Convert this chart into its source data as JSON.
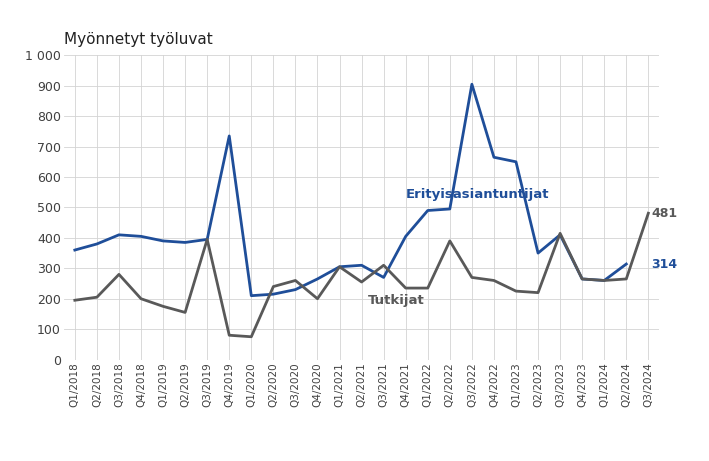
{
  "quarters": [
    "Q1/2018",
    "Q2/2018",
    "Q3/2018",
    "Q4/2018",
    "Q1/2019",
    "Q2/2019",
    "Q3/2019",
    "Q4/2019",
    "Q1/2020",
    "Q2/2020",
    "Q3/2020",
    "Q4/2020",
    "Q1/2021",
    "Q2/2021",
    "Q3/2021",
    "Q4/2021",
    "Q1/2022",
    "Q2/2022",
    "Q3/2022",
    "Q4/2022",
    "Q1/2023",
    "Q2/2023",
    "Q3/2023",
    "Q4/2023",
    "Q1/2024",
    "Q2/2024",
    "Q3/2024"
  ],
  "erityisasiantuntijat": [
    360,
    380,
    410,
    405,
    390,
    385,
    395,
    735,
    210,
    215,
    230,
    265,
    305,
    310,
    270,
    405,
    490,
    495,
    905,
    665,
    650,
    350,
    410,
    265,
    260,
    314,
    null
  ],
  "tutkijat": [
    195,
    205,
    280,
    200,
    175,
    155,
    395,
    80,
    75,
    240,
    260,
    200,
    305,
    255,
    310,
    235,
    235,
    390,
    270,
    260,
    225,
    220,
    415,
    265,
    260,
    265,
    481
  ],
  "erityisasiantuntijat_color": "#1f4e99",
  "tutkijat_color": "#595959",
  "title": "Myönnetyt työluvat",
  "ylim": [
    0,
    1000
  ],
  "ytick_vals": [
    0,
    100,
    200,
    300,
    400,
    500,
    600,
    700,
    800,
    900,
    1000
  ],
  "label_erityisasiantuntijat": "Erityisasiantuntijat",
  "label_tutkijat": "Tutkijat",
  "end_label_erityisasiantuntijat": "314",
  "end_label_tutkijat": "481",
  "background_color": "#ffffff",
  "grid_color": "#d3d3d3",
  "linewidth": 2.0
}
